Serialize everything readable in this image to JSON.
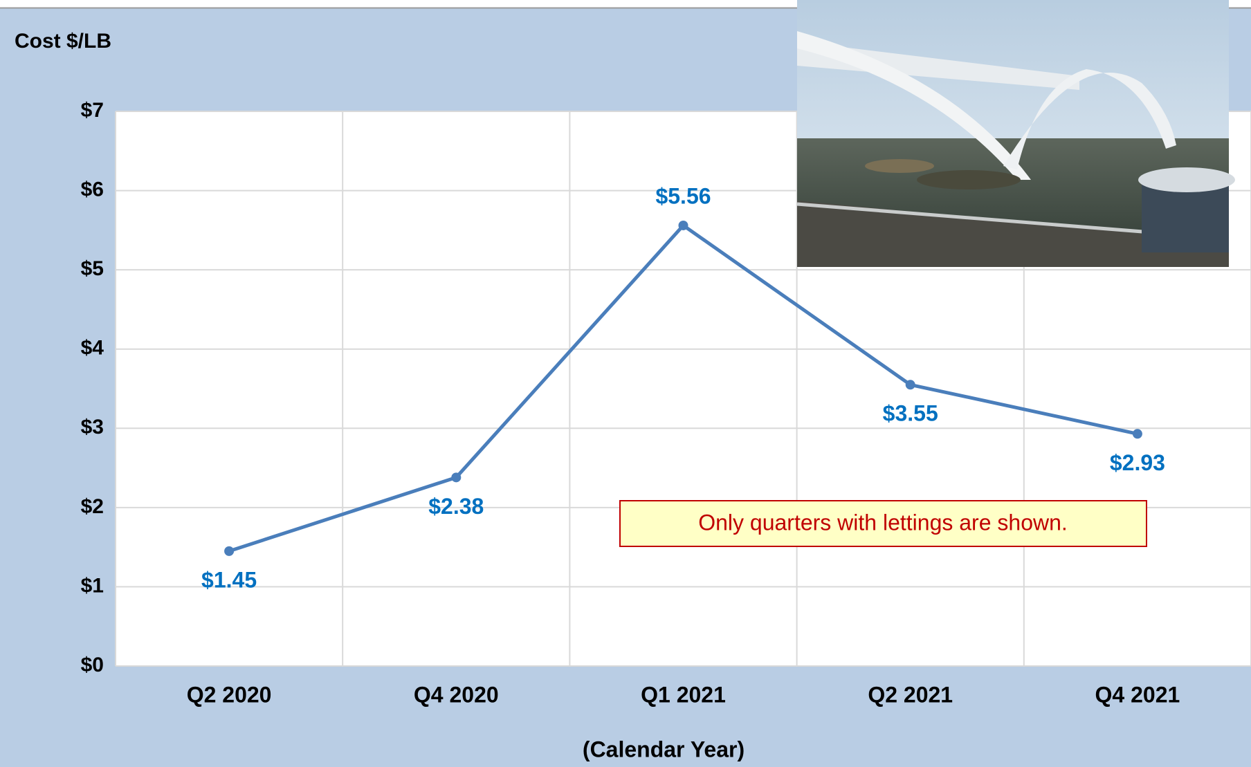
{
  "chart_data": {
    "type": "line",
    "y_axis_label": "Cost $/LB",
    "x_axis_label": "(Calendar Year)",
    "annotation": "Only quarters with lettings are shown.",
    "categories": [
      "Q2 2020",
      "Q4 2020",
      "Q1 2021",
      "Q2 2021",
      "Q4 2021"
    ],
    "values": [
      1.45,
      2.38,
      5.56,
      3.55,
      2.93
    ],
    "value_labels": [
      "$1.45",
      "$2.38",
      "$5.56",
      "$3.55",
      "$2.93"
    ],
    "color": "#4a7ebb",
    "label_color": "#0070c0",
    "ylim": [
      0,
      7
    ],
    "yticks": [
      {
        "value": 0,
        "label": "$0"
      },
      {
        "value": 1,
        "label": "$1"
      },
      {
        "value": 2,
        "label": "$2"
      },
      {
        "value": 3,
        "label": "$3"
      },
      {
        "value": 4,
        "label": "$4"
      },
      {
        "value": 5,
        "label": "$5"
      },
      {
        "value": 6,
        "label": "$6"
      },
      {
        "value": 7,
        "label": "$7"
      }
    ],
    "grid": true
  }
}
